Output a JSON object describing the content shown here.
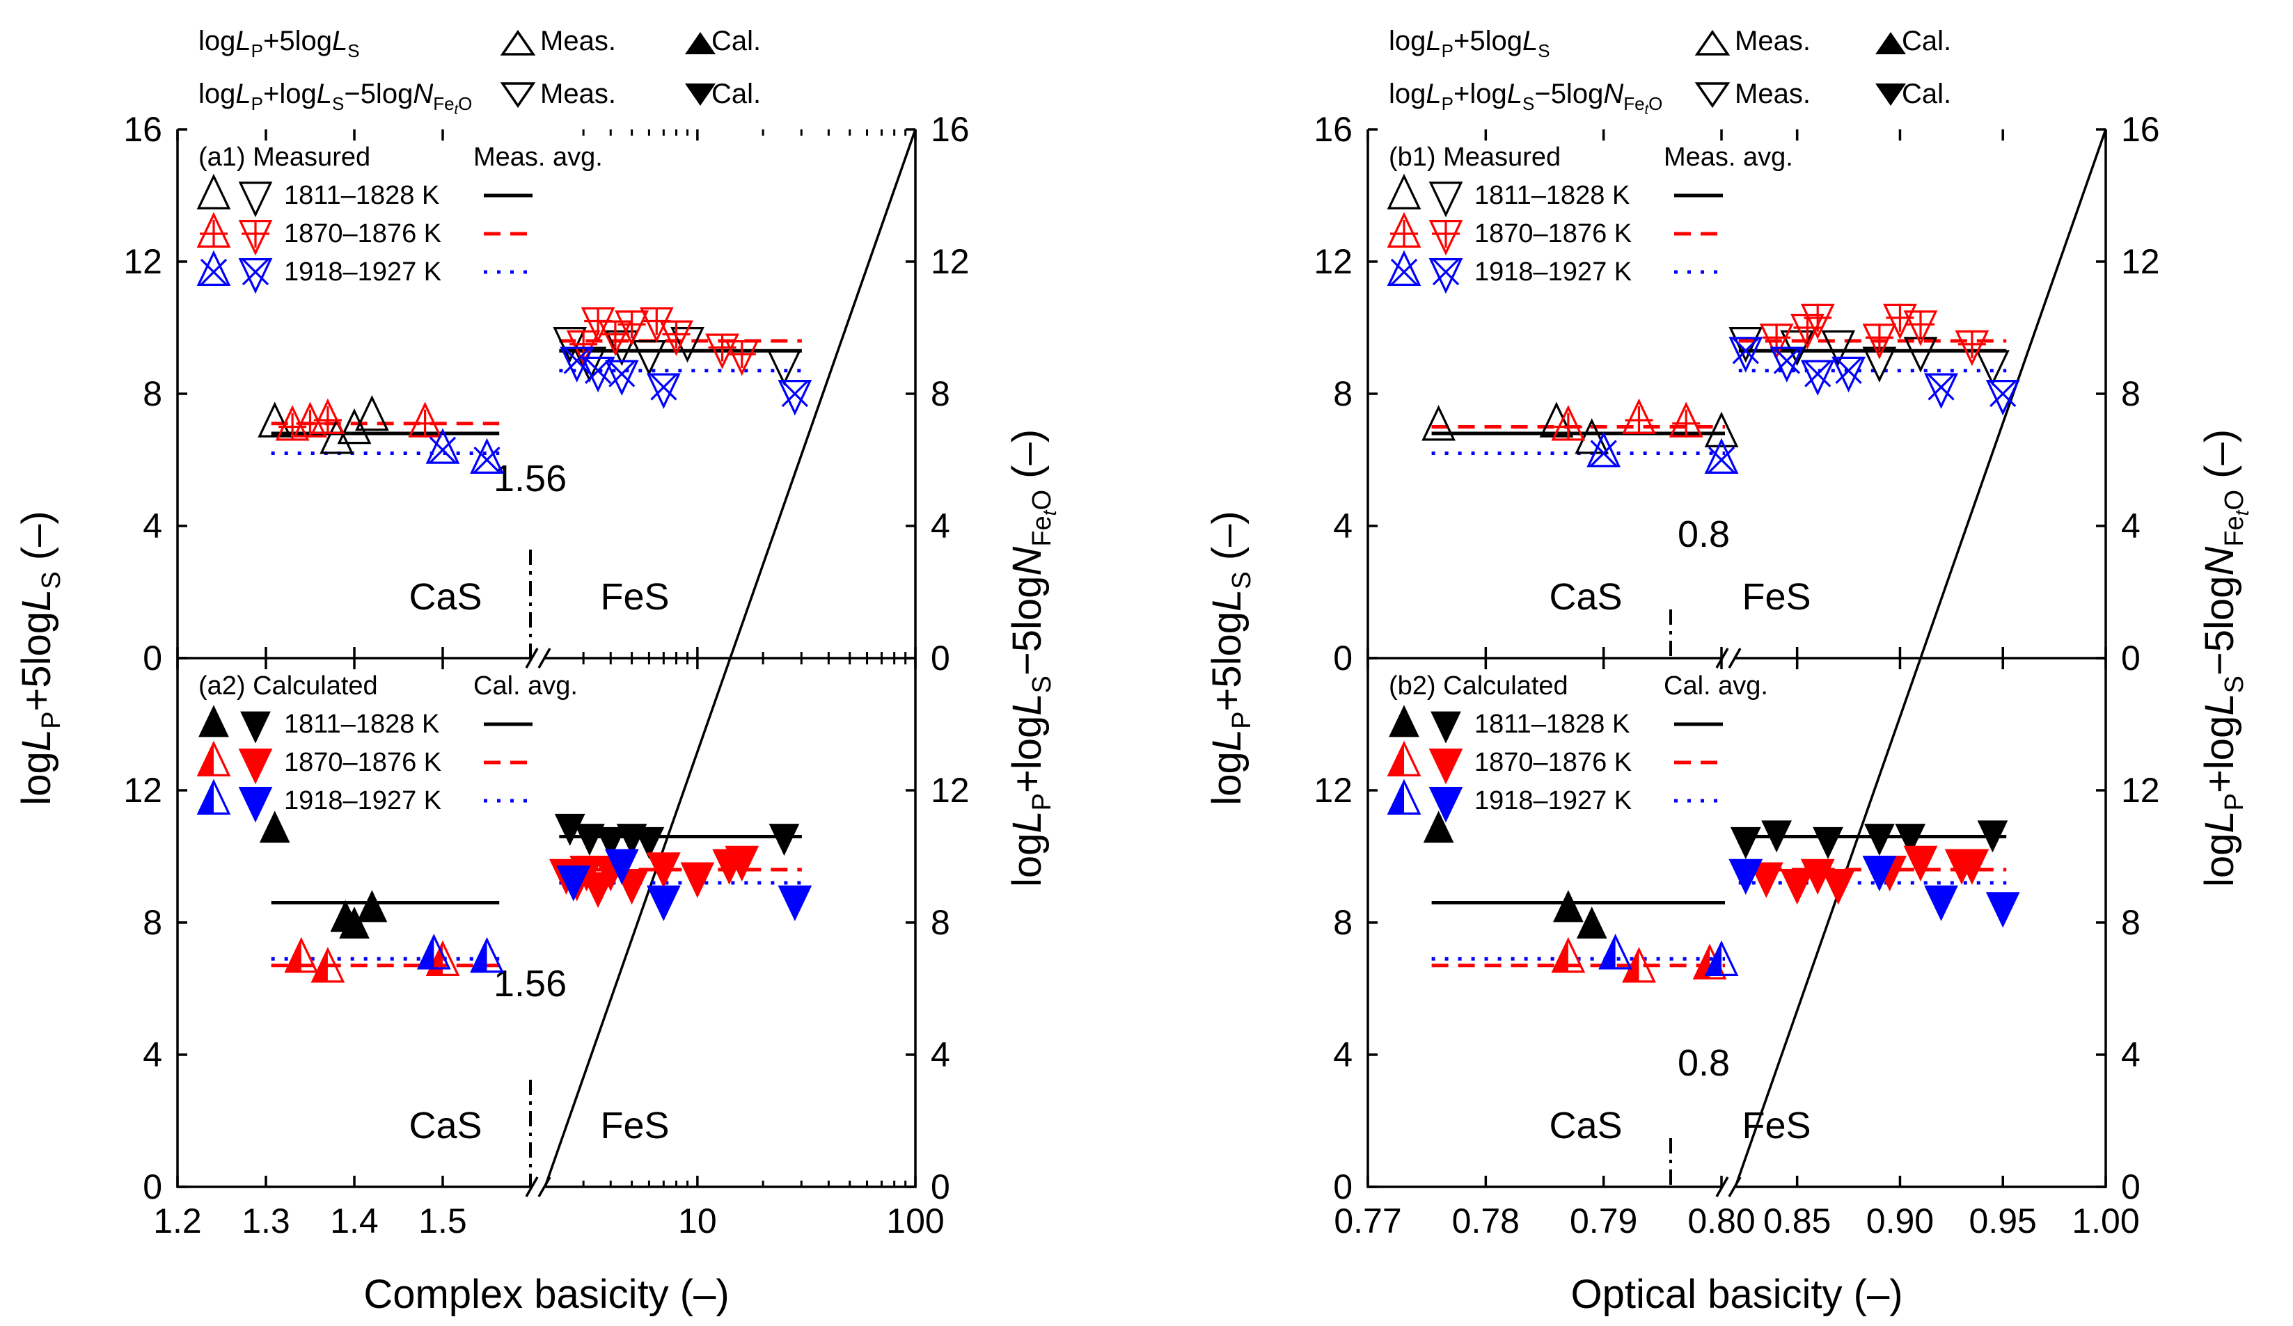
{
  "legend_top": {
    "row1_label": "logLP+5logLS",
    "row2_label": "logLP+logLS−5logNFetO",
    "meas": "Meas.",
    "cal": "Cal."
  },
  "colors": {
    "t1811": "#000000",
    "t1870": "#ff0000",
    "t1918": "#0000ff"
  },
  "temperatures": [
    "1811–1828 K",
    "1870–1876 K",
    "1918–1927 K"
  ],
  "left_ylabel": "logLP+5logLS (–)",
  "right_ylabel": "logLP+logLS−5logNFetO (–)",
  "y_ticks": [
    "0",
    "4",
    "8",
    "12",
    "16"
  ],
  "chart_data": [
    {
      "id": "a1",
      "type": "scatter",
      "title": "(a1) Measured",
      "avg_label": "Meas. avg.",
      "xlabel": "Complex basicity (–)",
      "x_ticks_left": [
        "1.2",
        "1.3",
        "1.4",
        "1.5"
      ],
      "x_ticks_right": [
        "10",
        "100"
      ],
      "divider_value": "1.56",
      "region_labels": [
        "CaS",
        "FeS"
      ],
      "ylim": [
        0,
        16
      ],
      "series": [
        {
          "name": "1811–1828 K",
          "type": "meas",
          "cas_x": [
            1.31,
            1.38,
            1.4,
            1.42
          ],
          "cas_y": [
            7.1,
            6.6,
            6.9,
            7.3
          ],
          "fes_x": [
            2.6,
            3.2,
            4.5,
            6.0,
            9.0,
            25.0
          ],
          "fes_y": [
            9.6,
            9.0,
            9.5,
            9.2,
            9.6,
            8.9
          ],
          "avg_cas": 6.8,
          "avg_fes": 9.3
        },
        {
          "name": "1870–1876 K",
          "type": "meas",
          "cas_x": [
            1.33,
            1.35,
            1.37,
            1.48
          ],
          "cas_y": [
            7.0,
            7.1,
            7.2,
            7.1
          ],
          "fes_x": [
            3.0,
            3.5,
            4.2,
            5.0,
            6.5,
            8.0,
            13.0,
            16.0
          ],
          "fes_y": [
            9.5,
            10.2,
            9.8,
            10.1,
            10.2,
            9.8,
            9.4,
            9.2
          ],
          "avg_cas": 7.1,
          "avg_fes": 9.6
        },
        {
          "name": "1918–1927 K",
          "type": "meas",
          "cas_x": [
            1.5,
            1.55
          ],
          "cas_y": [
            6.3,
            6.0
          ],
          "fes_x": [
            2.8,
            3.5,
            4.5,
            7.0,
            28.0
          ],
          "fes_y": [
            9.0,
            8.7,
            8.6,
            8.2,
            8.0
          ],
          "avg_cas": 6.2,
          "avg_fes": 8.7
        }
      ]
    },
    {
      "id": "a2",
      "type": "scatter",
      "title": "(a2) Calculated",
      "avg_label": "Cal. avg.",
      "xlabel": "Complex basicity (–)",
      "x_ticks_left": [
        "1.2",
        "1.3",
        "1.4",
        "1.5"
      ],
      "x_ticks_right": [
        "10",
        "100"
      ],
      "divider_value": "1.56",
      "region_labels": [
        "CaS",
        "FeS"
      ],
      "ylim": [
        0,
        16
      ],
      "series": [
        {
          "name": "1811–1828 K",
          "type": "cal",
          "cas_x": [
            1.31,
            1.39,
            1.4,
            1.42
          ],
          "cas_y": [
            10.8,
            8.1,
            7.9,
            8.4
          ],
          "fes_x": [
            2.6,
            3.2,
            4.0,
            5.0,
            6.0,
            25.0
          ],
          "fes_y": [
            10.9,
            10.6,
            10.5,
            10.6,
            10.5,
            10.6
          ],
          "avg_cas": 8.6,
          "avg_fes": 10.6
        },
        {
          "name": "1870–1876 K",
          "type": "cal",
          "cas_x": [
            1.34,
            1.37,
            1.5
          ],
          "cas_y": [
            6.9,
            6.6,
            6.8
          ],
          "fes_x": [
            2.5,
            2.8,
            3.1,
            3.5,
            4.0,
            5.0,
            7.0,
            10.0,
            14.0,
            16.0
          ],
          "fes_y": [
            9.5,
            9.3,
            9.6,
            9.1,
            9.6,
            9.2,
            9.7,
            9.4,
            9.8,
            9.9
          ],
          "avg_cas": 6.7,
          "avg_fes": 9.6
        },
        {
          "name": "1918–1927 K",
          "type": "cal",
          "cas_x": [
            1.49,
            1.55
          ],
          "cas_y": [
            7.0,
            6.9
          ],
          "fes_x": [
            2.7,
            4.5,
            7.0,
            28.0
          ],
          "fes_y": [
            9.3,
            9.8,
            8.7,
            8.7
          ],
          "avg_cas": 6.9,
          "avg_fes": 9.2
        }
      ]
    },
    {
      "id": "b1",
      "type": "scatter",
      "title": "(b1) Measured",
      "avg_label": "Meas. avg.",
      "xlabel": "Optical basicity (–)",
      "x_ticks_left": [
        "0.77",
        "0.78",
        "0.79",
        "0.80"
      ],
      "x_ticks_right": [
        "0.85",
        "0.90",
        "0.95",
        "1.00"
      ],
      "divider_value": "0.8",
      "region_labels": [
        "CaS",
        "FeS"
      ],
      "ylim": [
        0,
        16
      ],
      "series": [
        {
          "name": "1811–1828 K",
          "type": "meas",
          "cas_x": [
            0.776,
            0.786,
            0.789,
            0.8
          ],
          "cas_y": [
            7.0,
            7.1,
            6.6,
            6.8
          ],
          "fes_x": [
            0.825,
            0.85,
            0.87,
            0.89,
            0.91,
            0.945
          ],
          "fes_y": [
            9.6,
            9.5,
            9.5,
            9.0,
            9.3,
            8.9
          ],
          "avg_cas": 6.8,
          "avg_fes": 9.3
        },
        {
          "name": "1870–1876 K",
          "type": "meas",
          "cas_x": [
            0.787,
            0.793,
            0.797
          ],
          "cas_y": [
            7.0,
            7.2,
            7.1
          ],
          "fes_x": [
            0.84,
            0.855,
            0.86,
            0.89,
            0.9,
            0.91,
            0.935
          ],
          "fes_y": [
            9.7,
            10.0,
            10.3,
            9.7,
            10.3,
            10.1,
            9.5
          ],
          "avg_cas": 7.0,
          "avg_fes": 9.6
        },
        {
          "name": "1918–1927 K",
          "type": "meas",
          "cas_x": [
            0.79,
            0.8
          ],
          "cas_y": [
            6.2,
            6.0
          ],
          "fes_x": [
            0.825,
            0.845,
            0.86,
            0.875,
            0.92,
            0.95
          ],
          "fes_y": [
            9.3,
            9.0,
            8.6,
            8.7,
            8.2,
            8.0
          ],
          "avg_cas": 6.2,
          "avg_fes": 8.7
        }
      ]
    },
    {
      "id": "b2",
      "type": "scatter",
      "title": "(b2) Calculated",
      "avg_label": "Cal. avg.",
      "xlabel": "Optical basicity (–)",
      "x_ticks_left": [
        "0.77",
        "0.78",
        "0.79",
        "0.80"
      ],
      "x_ticks_right": [
        "0.85",
        "0.90",
        "0.95",
        "1.00"
      ],
      "divider_value": "0.8",
      "region_labels": [
        "CaS",
        "FeS"
      ],
      "ylim": [
        0,
        16
      ],
      "series": [
        {
          "name": "1811–1828 K",
          "type": "cal",
          "cas_x": [
            0.776,
            0.787,
            0.789
          ],
          "cas_y": [
            10.8,
            8.4,
            7.9
          ],
          "fes_x": [
            0.825,
            0.84,
            0.865,
            0.89,
            0.905,
            0.945
          ],
          "fes_y": [
            10.5,
            10.7,
            10.5,
            10.6,
            10.6,
            10.7
          ],
          "avg_cas": 8.6,
          "avg_fes": 10.6
        },
        {
          "name": "1870–1876 K",
          "type": "cal",
          "cas_x": [
            0.787,
            0.793,
            0.799
          ],
          "cas_y": [
            6.9,
            6.6,
            6.7
          ],
          "fes_x": [
            0.835,
            0.85,
            0.86,
            0.87,
            0.895,
            0.91,
            0.93,
            0.935
          ],
          "fes_y": [
            9.4,
            9.2,
            9.5,
            9.2,
            9.6,
            9.9,
            9.8,
            9.8
          ],
          "avg_cas": 6.7,
          "avg_fes": 9.6
        },
        {
          "name": "1918–1927 K",
          "type": "cal",
          "cas_x": [
            0.791,
            0.8
          ],
          "cas_y": [
            7.0,
            6.8
          ],
          "fes_x": [
            0.825,
            0.89,
            0.92,
            0.95
          ],
          "fes_y": [
            9.5,
            9.6,
            8.7,
            8.5
          ],
          "avg_cas": 6.9,
          "avg_fes": 9.2
        }
      ]
    }
  ]
}
